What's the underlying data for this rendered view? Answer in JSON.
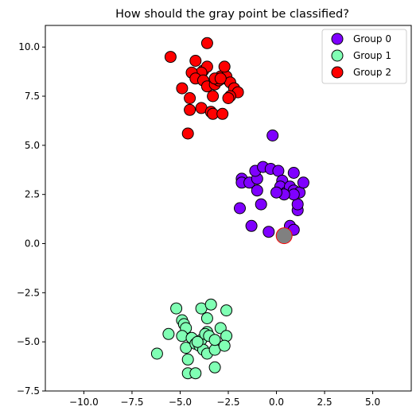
{
  "chart_data": {
    "type": "scatter",
    "title": "How should the gray point be classified?",
    "xlabel": "",
    "ylabel": "",
    "xlim": [
      -12.0,
      7.0
    ],
    "ylim": [
      -7.5,
      11.1
    ],
    "xticks": [
      -10.0,
      -7.5,
      -5.0,
      -2.5,
      0.0,
      2.5,
      5.0
    ],
    "xtick_labels": [
      "−10.0",
      "−7.5",
      "−5.0",
      "−2.5",
      "0.0",
      "2.5",
      "5.0"
    ],
    "yticks": [
      -7.5,
      -5.0,
      -2.5,
      0.0,
      2.5,
      5.0,
      7.5,
      10.0
    ],
    "ytick_labels": [
      "−7.5",
      "−5.0",
      "−2.5",
      "0.0",
      "2.5",
      "5.0",
      "7.5",
      "10.0"
    ],
    "grid": false,
    "legend_position": "top-right",
    "series": [
      {
        "name": "Group 0",
        "color": "#7f00ff",
        "points": [
          [
            -0.2,
            5.5
          ],
          [
            -1.8,
            3.3
          ],
          [
            -1.8,
            3.1
          ],
          [
            -1.4,
            3.1
          ],
          [
            -1.0,
            3.3
          ],
          [
            -1.1,
            3.7
          ],
          [
            -0.7,
            3.9
          ],
          [
            -0.3,
            3.8
          ],
          [
            0.1,
            3.7
          ],
          [
            0.3,
            3.2
          ],
          [
            0.2,
            2.9
          ],
          [
            0.5,
            2.6
          ],
          [
            0.7,
            2.9
          ],
          [
            0.9,
            2.7
          ],
          [
            0.9,
            3.6
          ],
          [
            1.2,
            2.6
          ],
          [
            1.4,
            3.1
          ],
          [
            1.1,
            1.7
          ],
          [
            1.1,
            2.0
          ],
          [
            0.9,
            2.5
          ],
          [
            0.4,
            2.5
          ],
          [
            0.0,
            2.6
          ],
          [
            -1.0,
            2.7
          ],
          [
            -0.8,
            2.0
          ],
          [
            -1.9,
            1.8
          ],
          [
            -1.3,
            0.9
          ],
          [
            -0.4,
            0.6
          ],
          [
            0.7,
            0.9
          ],
          [
            0.9,
            0.7
          ]
        ]
      },
      {
        "name": "Group 1",
        "color": "#80ffb4",
        "points": [
          [
            -6.2,
            -5.6
          ],
          [
            -5.6,
            -4.6
          ],
          [
            -5.2,
            -3.3
          ],
          [
            -4.9,
            -3.9
          ],
          [
            -4.8,
            -4.1
          ],
          [
            -4.7,
            -4.3
          ],
          [
            -4.9,
            -4.7
          ],
          [
            -4.7,
            -5.3
          ],
          [
            -4.6,
            -5.9
          ],
          [
            -4.6,
            -6.6
          ],
          [
            -4.2,
            -6.6
          ],
          [
            -4.4,
            -4.8
          ],
          [
            -4.2,
            -5.1
          ],
          [
            -4.0,
            -5.2
          ],
          [
            -3.9,
            -4.9
          ],
          [
            -3.9,
            -3.3
          ],
          [
            -3.6,
            -3.8
          ],
          [
            -3.4,
            -3.1
          ],
          [
            -3.6,
            -4.5
          ],
          [
            -3.7,
            -4.6
          ],
          [
            -3.5,
            -4.7
          ],
          [
            -3.8,
            -5.4
          ],
          [
            -3.6,
            -5.6
          ],
          [
            -3.2,
            -5.4
          ],
          [
            -3.2,
            -4.9
          ],
          [
            -2.9,
            -4.3
          ],
          [
            -2.6,
            -3.4
          ],
          [
            -2.6,
            -4.7
          ],
          [
            -2.7,
            -5.2
          ],
          [
            -3.2,
            -6.3
          ],
          [
            -4.1,
            -5.0
          ]
        ]
      },
      {
        "name": "Group 2",
        "color": "#ff0000",
        "points": [
          [
            -3.6,
            10.2
          ],
          [
            -5.5,
            9.5
          ],
          [
            -4.2,
            9.3
          ],
          [
            -3.8,
            8.8
          ],
          [
            -3.6,
            9.0
          ],
          [
            -3.9,
            8.7
          ],
          [
            -4.4,
            8.7
          ],
          [
            -4.2,
            8.4
          ],
          [
            -3.8,
            8.3
          ],
          [
            -3.6,
            8.0
          ],
          [
            -3.2,
            8.1
          ],
          [
            -3.0,
            8.3
          ],
          [
            -2.7,
            8.4
          ],
          [
            -2.9,
            8.5
          ],
          [
            -2.6,
            8.5
          ],
          [
            -2.4,
            8.2
          ],
          [
            -2.7,
            9.0
          ],
          [
            -2.2,
            7.9
          ],
          [
            -2.0,
            7.7
          ],
          [
            -2.4,
            7.5
          ],
          [
            -2.5,
            7.4
          ],
          [
            -4.9,
            7.9
          ],
          [
            -4.5,
            7.4
          ],
          [
            -3.3,
            7.5
          ],
          [
            -3.9,
            6.9
          ],
          [
            -3.4,
            6.7
          ],
          [
            -3.3,
            6.6
          ],
          [
            -2.8,
            6.6
          ],
          [
            -4.5,
            6.8
          ],
          [
            -4.6,
            5.6
          ],
          [
            -3.2,
            8.4
          ],
          [
            -2.9,
            8.4
          ]
        ]
      }
    ],
    "query_point": {
      "x": 0.4,
      "y": 0.4,
      "color": "#808080",
      "edge_color": "#ff0000"
    }
  }
}
